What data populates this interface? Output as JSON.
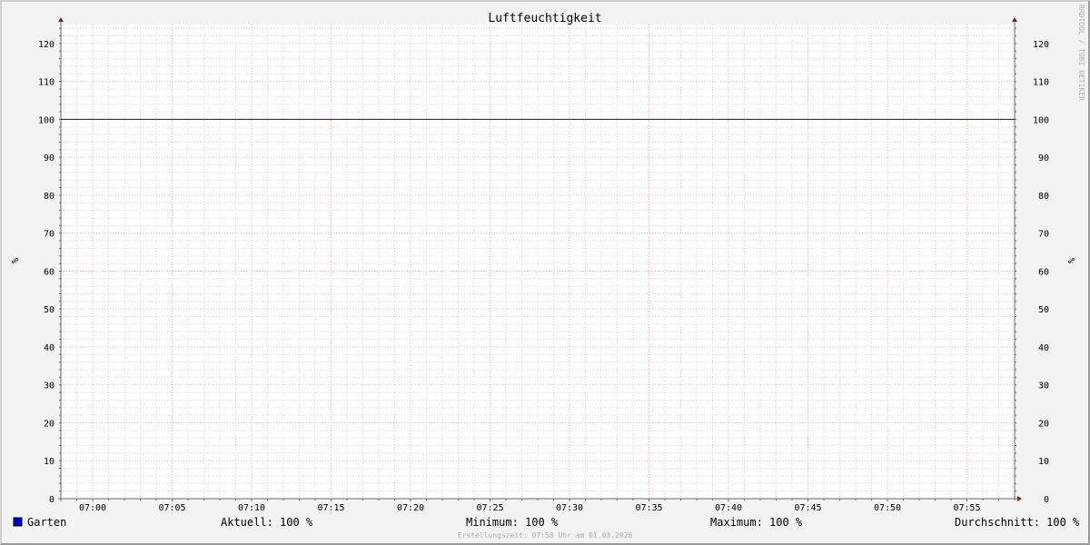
{
  "chart_data": {
    "type": "line",
    "title": "Luftfeuchtigkeit",
    "ylabel": "%",
    "ylabel_right": "%",
    "watermark": "RRDTOOL / TOBI OETIKER",
    "x_range": [
      "06:58",
      "07:58"
    ],
    "x_ticks": [
      "07:00",
      "07:05",
      "07:10",
      "07:15",
      "07:20",
      "07:25",
      "07:30",
      "07:35",
      "07:40",
      "07:45",
      "07:50",
      "07:55"
    ],
    "ylim": [
      0,
      125
    ],
    "y_ticks": [
      0,
      10,
      20,
      30,
      40,
      50,
      60,
      70,
      80,
      90,
      100,
      110,
      120
    ],
    "grid": true,
    "series": [
      {
        "name": "Garten",
        "color": "#0000cc",
        "x": [
          "06:58",
          "07:58"
        ],
        "values": [
          100,
          100
        ]
      }
    ],
    "legend": {
      "swatch_color": "#0000cc",
      "name": "Garten",
      "current": "Aktuell: 100 %",
      "minimum": "Minimum: 100 %",
      "maximum": "Maximum: 100 %",
      "average": "Durchschnitt: 100 %"
    },
    "footer": "Erstellungszeit: 07:58 Uhr am 01.03.2026"
  }
}
